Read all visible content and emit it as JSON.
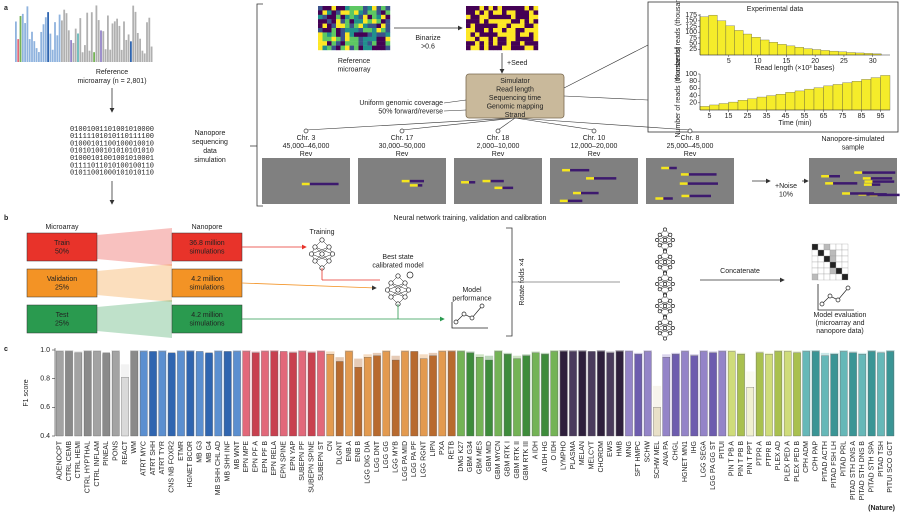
{
  "panel_a": {
    "label": "a",
    "reference_lines": [
      "Reference",
      "microarray (n = 2,801)"
    ],
    "binary": [
      "01001001101001010000",
      "01111101010110111100",
      "01000101100100010010",
      "01010100101010101010",
      "01000101001001010001",
      "01111011010100100110",
      "01011001000101010110"
    ],
    "simulation_lines": [
      "Nanopore",
      "sequencing",
      "data",
      "simulation"
    ],
    "reference_heatmap": [
      "Reference",
      "microarray"
    ],
    "binarize": [
      "Binarize",
      ">0.6"
    ],
    "seed": "+Seed",
    "simulator": [
      "Simulator",
      "Read length",
      "Sequencing time",
      "Genomic mapping",
      "Strand"
    ],
    "simulator_notes": [
      "Uniform genomic coverage",
      "50% forward/reverse"
    ],
    "experimental_title": "Experimental data",
    "reads": [
      {
        "chr": "Chr. 3",
        "range": "45,000–46,000",
        "strand": "Rev"
      },
      {
        "chr": "Chr. 17",
        "range": "30,000–50,000",
        "strand": "Rev"
      },
      {
        "chr": "Chr. 18",
        "range": "2,000–10,000",
        "strand": "Rev"
      },
      {
        "chr": "Chr. 10",
        "range": "12,000–20,000",
        "strand": "Rev"
      },
      {
        "chr": "Chr. 8",
        "range": "25,000–45,000",
        "strand": "Rev"
      }
    ],
    "noise": [
      "+Noise",
      "10%"
    ],
    "sample": [
      "Nanopore-simulated",
      "sample"
    ]
  },
  "panel_b": {
    "label": "b",
    "title": "Neural network training, validation and calibration",
    "microarray": "Microarray",
    "nanopore": "Nanopore",
    "rows": [
      {
        "split": [
          "Train",
          "50%"
        ],
        "sims": [
          "36.8 million",
          "simulations"
        ],
        "color": "#e8332a"
      },
      {
        "split": [
          "Validation",
          "25%"
        ],
        "sims": [
          "4.2 million",
          "simulations"
        ],
        "color": "#f39325"
      },
      {
        "split": [
          "Test",
          "25%"
        ],
        "sims": [
          "4.2 million",
          "simulations"
        ],
        "color": "#2a9a4f"
      }
    ],
    "training": "Training",
    "best_state": [
      "Best state",
      "calibrated model"
    ],
    "performance": [
      "Model",
      "performance"
    ],
    "rotate": "Rotate folds ×4",
    "concatenate": "Concatenate",
    "evaluation": [
      "Model evaluation",
      "(microarray and",
      "nanopore data)"
    ]
  },
  "panel_c": {
    "label": "c"
  },
  "footer": "(Nature)",
  "chart_data": [
    {
      "type": "histogram",
      "xlabel": "Read length (×10³ bases)",
      "ylabel": "Number of reads (thousands)",
      "color": "#f5ec2a",
      "bins": [
        0,
        1.5,
        3,
        4.5,
        6,
        7.5,
        9,
        10.5,
        12,
        13.5,
        15,
        16.5,
        18,
        19.5,
        21,
        22.5,
        24,
        25.5,
        27,
        28.5,
        30,
        31.5
      ],
      "values": [
        168,
        175,
        150,
        128,
        108,
        92,
        78,
        66,
        56,
        47,
        40,
        34,
        28,
        24,
        20,
        17,
        14,
        11,
        9,
        7,
        5
      ],
      "xlim": [
        0,
        33
      ],
      "xticks": [
        5,
        10,
        15,
        20,
        25,
        30
      ],
      "ylim": [
        0,
        180
      ],
      "yticks": [
        25,
        50,
        75,
        100,
        125,
        150,
        175
      ]
    },
    {
      "type": "histogram",
      "xlabel": "Time (min)",
      "ylabel": "Number of reads (thousands)",
      "color": "#f5ec2a",
      "bins": [
        0,
        5,
        10,
        15,
        20,
        25,
        30,
        35,
        40,
        45,
        50,
        55,
        60,
        65,
        70,
        75,
        80,
        85,
        90,
        95,
        100
      ],
      "values": [
        10,
        14,
        18,
        22,
        27,
        31,
        36,
        40,
        44,
        49,
        53,
        58,
        62,
        67,
        71,
        76,
        80,
        85,
        90,
        96
      ],
      "xlim": [
        0,
        100
      ],
      "xticks": [
        5,
        15,
        25,
        35,
        45,
        55,
        65,
        75,
        85,
        95
      ],
      "ylim": [
        0,
        100
      ],
      "yticks": [
        20,
        40,
        60,
        80,
        100
      ]
    },
    {
      "type": "bar",
      "ylabel": "F1 score",
      "ylim": [
        0.4,
        1.0
      ],
      "yticks": [
        0.4,
        0.6,
        0.8,
        {
          "value": 1,
          "label": "1.0"
        }
      ],
      "categories": [
        "ADENOCPT",
        "CTRL CEMB",
        "CTRL HEMI",
        "CTRL HYPTHAL",
        "CTRL INFLAM",
        "PINEAL",
        "PONS",
        "REACT",
        "WM",
        "ATRT MYC",
        "ATRT SHH",
        "ATRT TYR",
        "CNS NB FOXR2",
        "ETMR",
        "HGNET BCOR",
        "MB G3",
        "MB G4",
        "MB SHH CHL AD",
        "MB SHH INF",
        "MB WNT",
        "EPN MPE",
        "EPN PF A",
        "EPN PF B",
        "EPN RELA",
        "EPN SPINE",
        "EPN YAP",
        "SUBEPN PF",
        "SUBEPN SPINE",
        "SUBEPN ST",
        "CN",
        "DLGNT",
        "ENB A",
        "ENB B",
        "LGG DIG DIA",
        "LGG DNT",
        "LGG GG",
        "LGG MYB",
        "LGG PA MID",
        "LGG PA PF",
        "LGG RGNT",
        "LIPN",
        "PXA",
        "RETB",
        "DMG K27",
        "GBM G34",
        "GBM MES",
        "GBM MID",
        "GBM MYCN",
        "GBM RTK I",
        "GBM RTK II",
        "GBM RTK III",
        "A IDH",
        "A IDH HG",
        "O IDH",
        "LYMPHO",
        "PLASMA",
        "MELAN",
        "MELCYT",
        "CHORDM",
        "EWS",
        "HMB",
        "MNG",
        "SFT HMPC",
        "SCHW",
        "SCHW MEL",
        "ANA PA",
        "CHGL",
        "HGNET MN1",
        "IHG",
        "LGG SEGA",
        "LGG PA GG ST",
        "PITUI",
        "PIN T PB A",
        "PIN T PB B",
        "PIN T PPT",
        "PTPR A",
        "PTPR B",
        "PLEX AD",
        "PLEX PED A",
        "PLEX PED B",
        "CPH ADM",
        "CPH PAP",
        "PITAD ACTH",
        "PITAD FSH LH",
        "PITAD PRL",
        "PITAD STH DNS A",
        "PITAD STH DNS B",
        "PITAD STH SPA",
        "PITAD TSH",
        "PITUI SCO GCT"
      ],
      "colors": [
        "#a3a3a3",
        "#8a8a8a",
        "#a3a3a3",
        "#8a8a8a",
        "#a3a3a3",
        "#8a8a8a",
        "#a3a3a3",
        "#d9d9d9",
        "#8a8a8a",
        "#5b8fd0",
        "#2f65b0",
        "#5b8fd0",
        "#2f65b0",
        "#5b8fd0",
        "#2f65b0",
        "#5b8fd0",
        "#2f65b0",
        "#5b8fd0",
        "#2f65b0",
        "#5b8fd0",
        "#e2687a",
        "#c8404f",
        "#e2687a",
        "#c8404f",
        "#e2687a",
        "#c8404f",
        "#e2687a",
        "#c8404f",
        "#e2687a",
        "#e39a4f",
        "#b86a2e",
        "#e39a4f",
        "#b86a2e",
        "#e39a4f",
        "#b86a2e",
        "#e39a4f",
        "#b86a2e",
        "#e39a4f",
        "#b86a2e",
        "#e39a4f",
        "#b86a2e",
        "#e39a4f",
        "#b86a2e",
        "#74b356",
        "#3e8c3b",
        "#74b356",
        "#3e8c3b",
        "#74b356",
        "#3e8c3b",
        "#74b356",
        "#3e8c3b",
        "#74b356",
        "#3e8c3b",
        "#74b356",
        "#2e1f3c",
        "#4a3b5c",
        "#2e1f3c",
        "#4a3b5c",
        "#2e1f3c",
        "#4a3b5c",
        "#2e1f3c",
        "#9484c8",
        "#6d5cae",
        "#9484c8",
        "#e8e0c8",
        "#9484c8",
        "#6d5cae",
        "#9484c8",
        "#6d5cae",
        "#9484c8",
        "#6d5cae",
        "#9484c8",
        "#cfdc7a",
        "#a9c04f",
        "#f0f0d0",
        "#a9c04f",
        "#cfdc7a",
        "#a9c04f",
        "#cfdc7a",
        "#a9c04f",
        "#66b8b8",
        "#3a9595",
        "#66b8b8",
        "#3a9595",
        "#66b8b8",
        "#3a9595",
        "#66b8b8",
        "#3a9595",
        "#66b8b8",
        "#3a9595"
      ],
      "values": [
        0.99,
        0.99,
        0.98,
        0.99,
        0.99,
        0.98,
        0.99,
        0.81,
        0.99,
        0.99,
        0.99,
        0.99,
        0.98,
        0.99,
        0.99,
        0.99,
        0.98,
        0.99,
        0.99,
        0.99,
        0.99,
        0.98,
        0.99,
        0.99,
        0.99,
        0.98,
        0.99,
        0.98,
        0.99,
        0.97,
        0.92,
        0.99,
        0.88,
        0.95,
        0.96,
        0.99,
        0.93,
        0.99,
        0.99,
        0.94,
        0.96,
        0.99,
        0.99,
        0.99,
        0.98,
        0.95,
        0.93,
        0.99,
        0.97,
        0.94,
        0.96,
        0.98,
        0.97,
        0.99,
        0.99,
        0.99,
        0.99,
        0.99,
        0.99,
        0.98,
        0.99,
        0.99,
        0.97,
        0.99,
        0.6,
        0.95,
        0.97,
        0.99,
        0.96,
        0.99,
        0.98,
        0.99,
        0.99,
        0.97,
        0.74,
        0.98,
        0.97,
        0.99,
        0.99,
        0.98,
        0.99,
        0.99,
        0.96,
        0.97,
        0.99,
        0.98,
        0.97,
        0.99,
        0.98,
        0.99
      ],
      "values_secondary": [
        1.0,
        1.0,
        0.99,
        1.0,
        1.0,
        0.97,
        1.0,
        0.9,
        1.0,
        1.0,
        0.99,
        1.0,
        0.97,
        1.0,
        1.0,
        0.98,
        0.97,
        1.0,
        0.99,
        1.0,
        1.0,
        0.99,
        1.0,
        1.0,
        0.97,
        0.99,
        1.0,
        0.99,
        1.0,
        0.99,
        0.95,
        1.0,
        0.94,
        0.97,
        0.98,
        1.0,
        0.96,
        1.0,
        0.99,
        0.97,
        0.98,
        1.0,
        1.0,
        1.0,
        0.99,
        0.97,
        0.96,
        1.0,
        0.98,
        0.96,
        0.97,
        0.99,
        0.98,
        1.0,
        1.0,
        1.0,
        1.0,
        0.99,
        1.0,
        0.99,
        1.0,
        1.0,
        0.98,
        1.0,
        0.75,
        0.97,
        0.98,
        1.0,
        0.97,
        1.0,
        0.99,
        1.0,
        1.0,
        0.98,
        0.85,
        0.99,
        0.98,
        1.0,
        1.0,
        0.99,
        1.0,
        1.0,
        0.98,
        0.98,
        1.0,
        0.99,
        0.98,
        1.0,
        0.99,
        1.0
      ]
    }
  ]
}
